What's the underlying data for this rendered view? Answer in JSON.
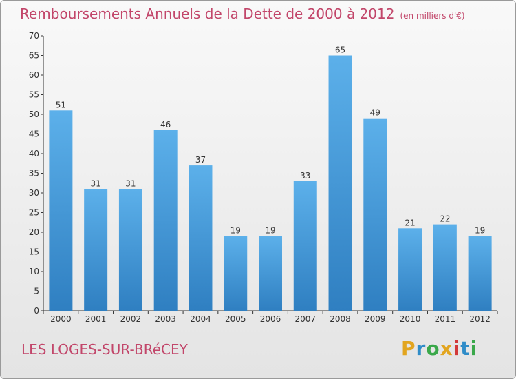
{
  "chart_data": {
    "type": "bar",
    "title": "Remboursements Annuels de la Dette de 2000 à 2012",
    "subtitle": "(en milliers d'€)",
    "xlabel": "",
    "ylabel": "",
    "categories": [
      "2000",
      "2001",
      "2002",
      "2003",
      "2004",
      "2005",
      "2006",
      "2007",
      "2008",
      "2009",
      "2010",
      "2011",
      "2012"
    ],
    "values": [
      51,
      31,
      31,
      46,
      37,
      19,
      19,
      33,
      65,
      49,
      21,
      22,
      19
    ],
    "ylim": [
      0,
      70
    ],
    "yticks": [
      0,
      5,
      10,
      15,
      20,
      25,
      30,
      35,
      40,
      45,
      50,
      55,
      60,
      65,
      70
    ],
    "grid": false,
    "legend": "none",
    "bar_color": "#4b9fdf",
    "data_labels": true
  },
  "footer": {
    "commune": "LES LOGES-SUR-BRéCEY",
    "logo_text": "Proxiti",
    "logo_colors": [
      "#e2a51f",
      "#2f8cc8",
      "#3aa84a",
      "#e2a51f",
      "#d23a3a",
      "#2f8cc8",
      "#3aa84a"
    ]
  },
  "colors": {
    "title": "#c2466a",
    "axis": "#333333"
  }
}
